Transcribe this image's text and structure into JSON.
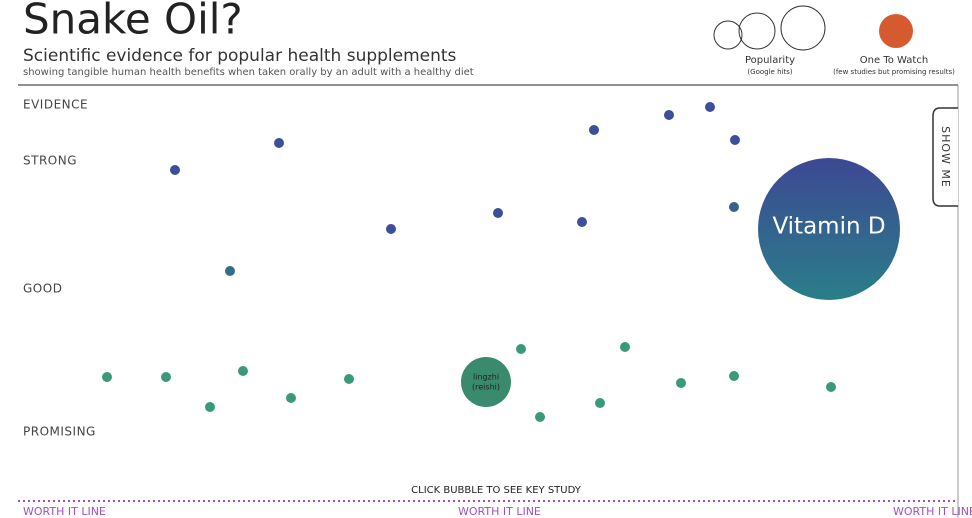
{
  "header": {
    "title": "Snake Oil?",
    "subtitle": "Scientific evidence for popular health supplements",
    "description": "showing tangible human health benefits when taken orally by an adult with a healthy diet"
  },
  "legend": {
    "popularity": {
      "label": "Popularity",
      "note": "(Google hits)"
    },
    "one_to_watch": {
      "label": "One To Watch",
      "note": "(few studies but promising results)"
    }
  },
  "evidence_levels": [
    "EVIDENCE",
    "STRONG",
    "GOOD",
    "PROMISING"
  ],
  "bubbles": {
    "vitamin_d": "Vitamin D",
    "lingzhi": {
      "line1": "lingzhi",
      "line2": "(reishi)"
    }
  },
  "side_tab": "SHOW ME",
  "instruction": "CLICK BUBBLE TO SEE KEY STUDY",
  "worth_it_line": "WORTH IT LINE"
}
